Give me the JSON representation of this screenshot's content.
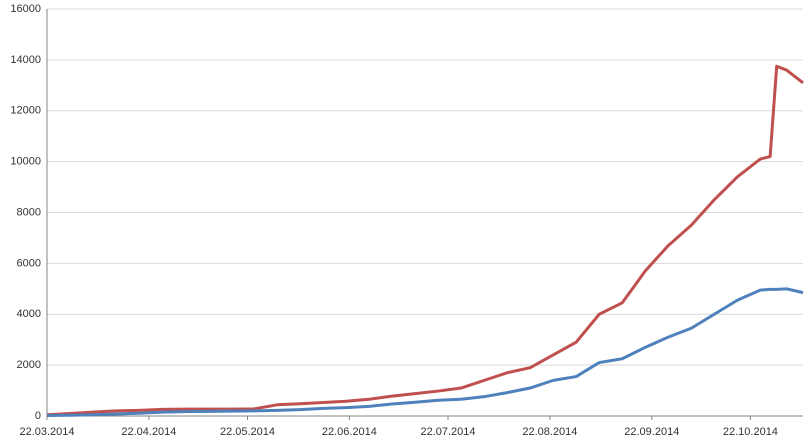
{
  "chart_data": {
    "type": "line",
    "x": [
      "2014-03-22",
      "2014-03-29",
      "2014-04-05",
      "2014-04-12",
      "2014-04-19",
      "2014-04-26",
      "2014-05-03",
      "2014-05-10",
      "2014-05-17",
      "2014-05-24",
      "2014-05-31",
      "2014-06-07",
      "2014-06-14",
      "2014-06-21",
      "2014-06-28",
      "2014-07-05",
      "2014-07-12",
      "2014-07-19",
      "2014-07-26",
      "2014-08-02",
      "2014-08-09",
      "2014-08-16",
      "2014-08-23",
      "2014-08-30",
      "2014-09-06",
      "2014-09-13",
      "2014-09-20",
      "2014-09-27",
      "2014-10-04",
      "2014-10-11",
      "2014-10-18",
      "2014-10-25",
      "2014-10-28",
      "2014-10-30",
      "2014-11-02",
      "2014-11-07"
    ],
    "series": [
      {
        "color": "#c0504d",
        "values": [
          50,
          100,
          150,
          200,
          220,
          260,
          270,
          270,
          270,
          280,
          440,
          480,
          530,
          580,
          660,
          780,
          880,
          980,
          1100,
          1400,
          1700,
          1900,
          2400,
          2900,
          4000,
          4450,
          5700,
          6700,
          7500,
          8500,
          9400,
          10100,
          10200,
          13750,
          13600,
          13100
        ]
      },
      {
        "color": "#4f81bd",
        "values": [
          20,
          30,
          50,
          80,
          110,
          150,
          170,
          180,
          190,
          200,
          220,
          250,
          300,
          330,
          380,
          470,
          540,
          620,
          660,
          760,
          920,
          1100,
          1400,
          1550,
          2100,
          2250,
          2700,
          3100,
          3450,
          4000,
          4550,
          4950,
          4980,
          4980,
          5000,
          4850
        ]
      }
    ],
    "xlim": [
      "2014-03-22",
      "2014-11-07"
    ],
    "xticks": [
      {
        "value": "2014-03-22",
        "label": "22.03.2014"
      },
      {
        "value": "2014-04-22",
        "label": "22.04.2014"
      },
      {
        "value": "2014-05-22",
        "label": "22.05.2014"
      },
      {
        "value": "2014-06-22",
        "label": "22.06.2014"
      },
      {
        "value": "2014-07-22",
        "label": "22.07.2014"
      },
      {
        "value": "2014-08-22",
        "label": "22.08.2014"
      },
      {
        "value": "2014-09-22",
        "label": "22.09.2014"
      },
      {
        "value": "2014-10-22",
        "label": "22.10.2014"
      }
    ],
    "ylim": [
      0,
      16000
    ],
    "yticks": [
      0,
      2000,
      4000,
      6000,
      8000,
      10000,
      12000,
      14000,
      16000
    ],
    "grid": true
  }
}
